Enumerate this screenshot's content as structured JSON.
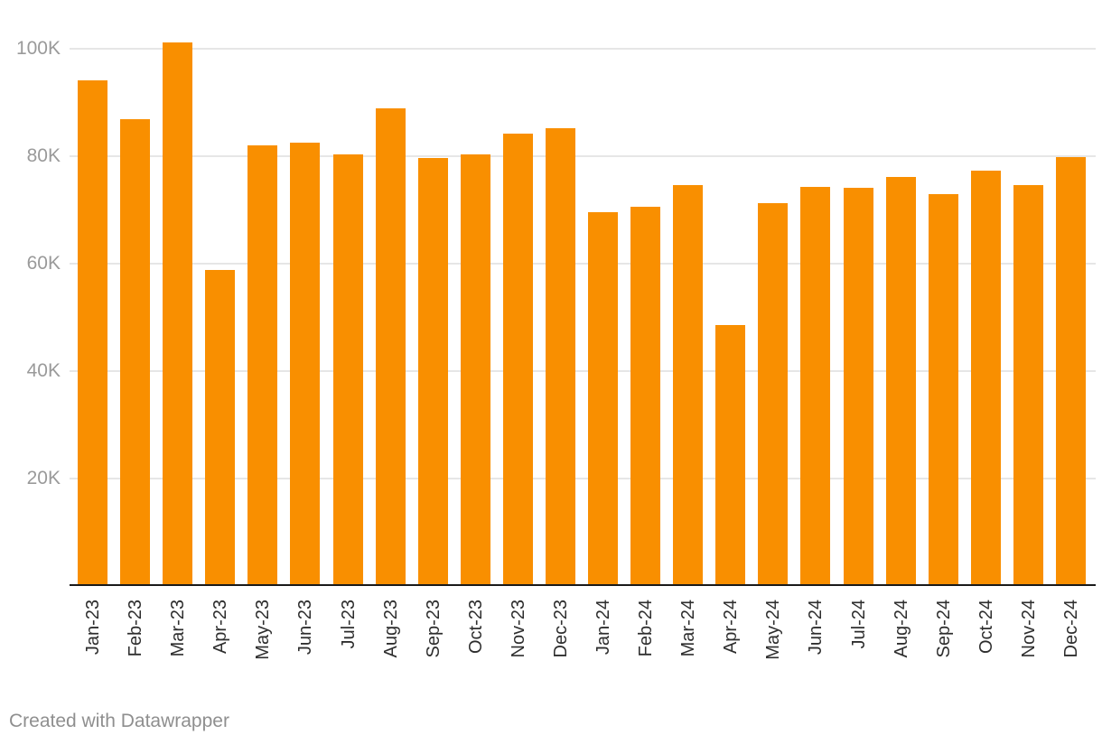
{
  "chart_data": {
    "type": "bar",
    "categories": [
      "Jan-23",
      "Feb-23",
      "Mar-23",
      "Apr-23",
      "May-23",
      "Jun-23",
      "Jul-23",
      "Aug-23",
      "Sep-23",
      "Oct-23",
      "Nov-23",
      "Dec-23",
      "Jan-24",
      "Feb-24",
      "Mar-24",
      "Apr-24",
      "May-24",
      "Jun-24",
      "Jul-24",
      "Aug-24",
      "Sep-24",
      "Oct-24",
      "Nov-24",
      "Dec-24"
    ],
    "values": [
      94200,
      86900,
      101200,
      58900,
      82100,
      82600,
      80400,
      88900,
      79700,
      80300,
      84300,
      85200,
      69600,
      70700,
      74700,
      48700,
      71300,
      74400,
      74100,
      76200,
      72900,
      77400,
      74700,
      79800
    ],
    "title": "",
    "xlabel": "",
    "ylabel": "",
    "ylim": [
      0,
      105000
    ],
    "y_ticks": [
      {
        "value": 100000,
        "label": "100K"
      },
      {
        "value": 80000,
        "label": "80K"
      },
      {
        "value": 60000,
        "label": "60K"
      },
      {
        "value": 40000,
        "label": "40K"
      },
      {
        "value": 20000,
        "label": "20K"
      }
    ],
    "grid": true,
    "legend_position": "none",
    "bar_color": "#f98f00"
  },
  "colors": {
    "bar": "#f98f00",
    "gridline": "#e6e6e6",
    "axis_line": "#1a1a1a",
    "y_tick_text": "#9a9a9a",
    "x_tick_text": "#2e2e2e",
    "footer_text": "#8f8f8f",
    "background": "#ffffff"
  },
  "footer": {
    "attribution": "Created with Datawrapper"
  }
}
